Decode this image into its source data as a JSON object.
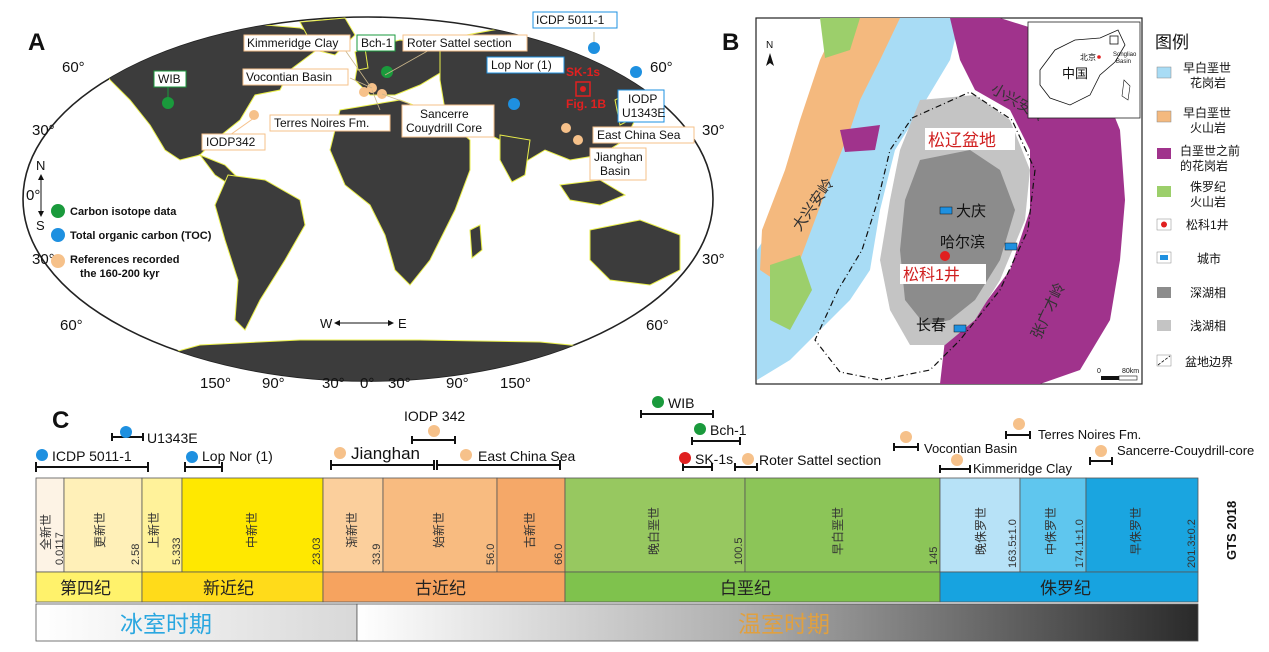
{
  "panels": {
    "a": "A",
    "b": "B",
    "c": "C"
  },
  "colors": {
    "ocean": "#ffffff",
    "land": "#3c3c3c",
    "coast": "#e9ee4a",
    "carbon": "#1a9a3c",
    "toc": "#1e90e0",
    "ref": "#f6c18a",
    "sk1": "#e02020",
    "cretaceous_granite": "#a0338c",
    "early_cret_volcanic": "#f4b97e",
    "jurassic_volcanic": "#9ccf6b",
    "deep_lake": "#8c8c8c",
    "shallow_lake": "#c4c4c4",
    "city": "#1e90e0",
    "cryo": "#2aa7e0",
    "warm": "#e0a040"
  },
  "map_a": {
    "lat_labels_left": [
      "60°",
      "30°",
      "0°",
      "30°",
      "60°"
    ],
    "lat_labels_right": [
      "60°",
      "30°",
      "30°",
      "60°"
    ],
    "lon_labels": [
      "150°",
      "90°",
      "30°",
      "0°",
      "30°",
      "90°",
      "150°"
    ],
    "compass_ns": {
      "n": "N",
      "s": "S"
    },
    "compass_we": {
      "w": "W",
      "e": "E"
    },
    "sites": {
      "wib": "WIB",
      "kimmeridge": "Kimmeridge Clay",
      "bch1": "Bch-1",
      "roter": "Roter Sattel section",
      "vocontian": "Vocontian Basin",
      "terres": "Terres Noires Fm.",
      "iodp342": "IODP342",
      "sancerre_1": "Sancerre",
      "sancerre_2": "Couydrill Core",
      "icdp": "ICDP 5011-1",
      "lopnor": "Lop Nor (1)",
      "sk1s": "SK-1s",
      "fig1b": "Fig. 1B",
      "iodp_u1343e_1": "IODP",
      "iodp_u1343e_2": "U1343E",
      "ecs": "East China Sea",
      "jianghan_1": "Jianghan",
      "jianghan_2": "Basin"
    },
    "legend": [
      {
        "key": "carbon",
        "label": "Carbon isotope data"
      },
      {
        "key": "toc",
        "label": "Total organic carbon (TOC)"
      },
      {
        "key": "ref",
        "label": "References recorded",
        "label2": "the 160-200 kyr"
      }
    ]
  },
  "map_b": {
    "legend_title": "图例",
    "legend": [
      {
        "color": "#a8dcf5",
        "lines": [
          "早白垩世",
          "花岗岩"
        ]
      },
      {
        "color": "#f4b97e",
        "lines": [
          "早白垩世",
          "火山岩"
        ]
      },
      {
        "color": "#a0338c",
        "lines": [
          "白垩世之前",
          "的花岗岩"
        ]
      },
      {
        "color": "#9ccf6b",
        "lines": [
          "侏罗纪",
          "火山岩"
        ]
      },
      {
        "symbol": "well",
        "lines": [
          "松科1井"
        ]
      },
      {
        "symbol": "city",
        "lines": [
          "城市"
        ]
      },
      {
        "color": "#8c8c8c",
        "lines": [
          "深湖相"
        ]
      },
      {
        "color": "#c4c4c4",
        "lines": [
          "浅湖相"
        ]
      },
      {
        "symbol": "boundary",
        "lines": [
          "盆地边界"
        ]
      }
    ],
    "basin": "松辽盆地",
    "daqing": "大庆",
    "harbin": "哈尔滨",
    "changchun": "长春",
    "well": "松科1井",
    "daxinganling": "大兴安岭",
    "xiaoxinganling": "小兴安岭",
    "zhangguangcai": "张广才岭",
    "inset": {
      "beijing": "北京",
      "china": "中国",
      "songliao_1": "Songliao",
      "songliao_2": "Basin"
    },
    "scale": {
      "zero": "0",
      "max": "80km"
    },
    "north": "N"
  },
  "timeline": {
    "epochs": [
      {
        "name": "全新世",
        "age": "0.0117"
      },
      {
        "name": "更新世",
        "age": "2.58"
      },
      {
        "name": "上新世",
        "age": "5.333"
      },
      {
        "name": "中新世",
        "age": "23.03"
      },
      {
        "name": "渐新世",
        "age": "33.9"
      },
      {
        "name": "始新世",
        "age": "56.0"
      },
      {
        "name": "古新世",
        "age": "66.0"
      },
      {
        "name": "晚白垩世",
        "age": "100.5"
      },
      {
        "name": "早白垩世",
        "age": "145"
      },
      {
        "name": "晚侏罗世",
        "age": "163.5±1.0"
      },
      {
        "name": "中侏罗世",
        "age": "174.1±1.0"
      },
      {
        "name": "早侏罗世",
        "age": "201.3±0.2"
      }
    ],
    "periods": [
      "第四纪",
      "新近纪",
      "古近纪",
      "白垩纪",
      "侏罗纪"
    ],
    "climate": [
      "冰室时期",
      "温室时期"
    ],
    "gts": "GTS 2018",
    "records": [
      "ICDP 5011-1",
      "U1343E",
      "Lop Nor (1)",
      "IODP 342",
      "Jianghan",
      "East China Sea",
      "WIB",
      "Bch-1",
      "SK-1s",
      "Roter Sattel section",
      "Vocontian Basin",
      "Terres Noires Fm.",
      "Kimmeridge Clay",
      "Sancerre-Couydrill-core"
    ]
  }
}
